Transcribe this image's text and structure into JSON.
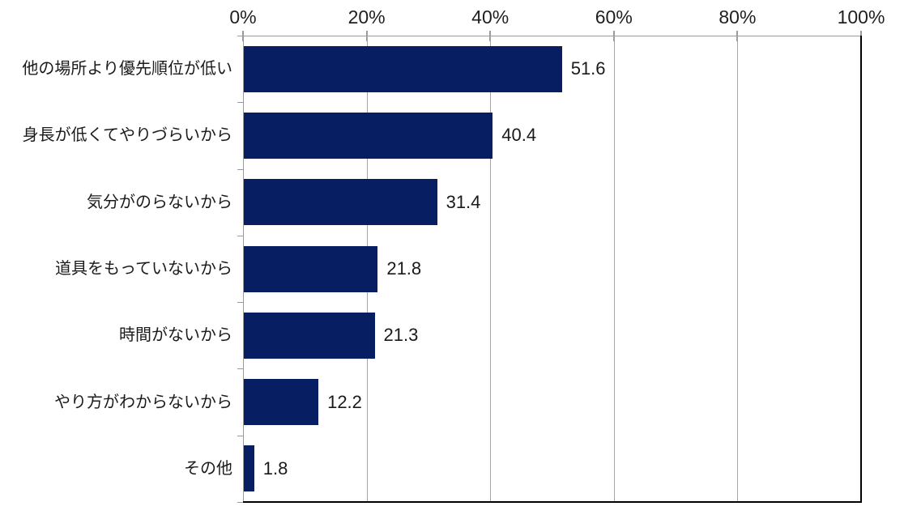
{
  "chart_data": {
    "type": "bar",
    "orientation": "horizontal",
    "categories": [
      "他の場所より優先順位が低い",
      "身長が低くてやりづらいから",
      "気分がのらないから",
      "道具をもっていないから",
      "時間がないから",
      "やり方がわからないから",
      "その他"
    ],
    "values": [
      51.6,
      40.4,
      31.4,
      21.8,
      21.3,
      12.2,
      1.8
    ],
    "value_labels": [
      "51.6",
      "40.4",
      "31.4",
      "21.8",
      "21.3",
      "12.2",
      "1.8"
    ],
    "x_ticks": [
      "0%",
      "20%",
      "40%",
      "60%",
      "80%",
      "100%"
    ],
    "x_tick_values": [
      0,
      20,
      40,
      60,
      80,
      100
    ],
    "xlim": [
      0,
      100
    ],
    "grid": "vertical-on",
    "legend": "none",
    "bar_color": "#071e63",
    "gridline_color": "#a6a6a6",
    "axis_color": "#9a9a9a",
    "plot_border_color": "#000000",
    "label_color": "#1a1a1a"
  }
}
